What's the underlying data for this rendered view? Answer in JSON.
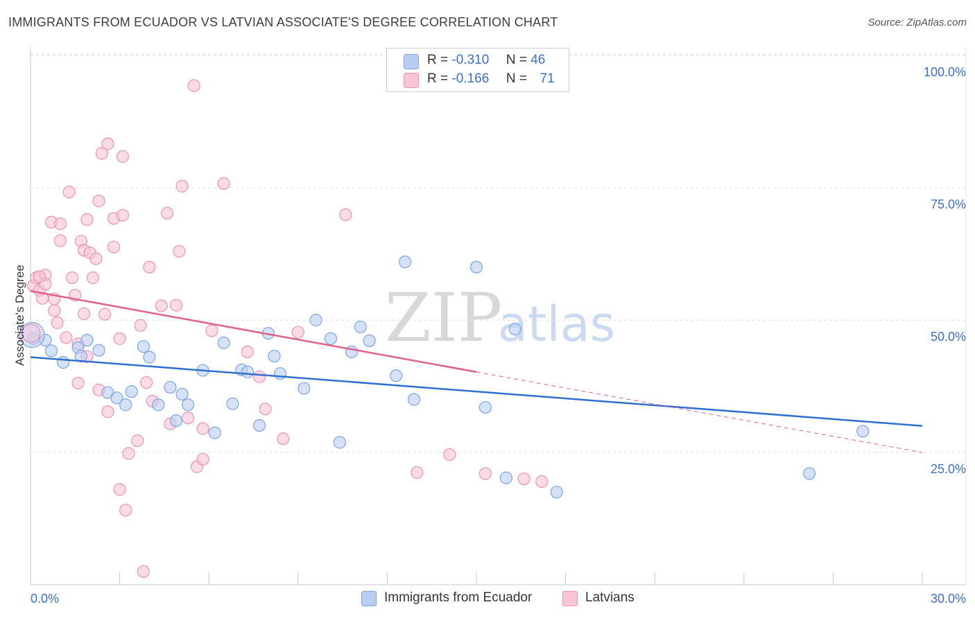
{
  "title": "IMMIGRANTS FROM ECUADOR VS LATVIAN ASSOCIATE'S DEGREE CORRELATION CHART",
  "source": "Source: ZipAtlas.com",
  "watermark": {
    "zip": "ZIP",
    "atlas": "atlas"
  },
  "legend": {
    "rows": [
      {
        "r_label": "R =",
        "r_value": "-0.310",
        "n_label": "N =",
        "n_value": "46"
      },
      {
        "r_label": "R =",
        "r_value": "-0.166",
        "n_label": "N =",
        "n_value": "71"
      }
    ]
  },
  "bottom_legend": [
    "Immigrants from Ecuador",
    "Latvians"
  ],
  "colors": {
    "blue_fill": "#b9cdf2",
    "blue_stroke": "#7ea3e3",
    "blue_line": "#2f6fcf",
    "pink_fill": "#f8c5d5",
    "pink_stroke": "#ec93b0",
    "pink_line": "#e0608a",
    "axis_label_blue": "#3a6fd0",
    "grid": "#dcdcdc"
  },
  "chart_data": {
    "type": "scatter",
    "title": "IMMIGRANTS FROM ECUADOR VS LATVIAN ASSOCIATE'S DEGREE CORRELATION CHART",
    "xlabel": "",
    "ylabel": "Associate's Degree",
    "xlim": [
      0,
      30
    ],
    "ylim": [
      0,
      102
    ],
    "x_tick_labels": [
      "0.0%",
      "30.0%"
    ],
    "y_ticks": [
      25,
      50,
      75,
      100
    ],
    "y_tick_labels": [
      "25.0%",
      "50.0%",
      "75.0%",
      "100.0%"
    ],
    "grid": true,
    "legend_position": "top-center",
    "series": [
      {
        "name": "Immigrants from Ecuador",
        "color": "#7ea3e3",
        "r": -0.31,
        "n": 46,
        "trend": {
          "x": [
            0,
            30
          ],
          "y": [
            43.0,
            30.0
          ]
        },
        "points": [
          [
            0.1,
            46.5
          ],
          [
            0.5,
            46.2
          ],
          [
            0.7,
            44.2
          ],
          [
            1.1,
            42.0
          ],
          [
            1.6,
            44.8
          ],
          [
            1.7,
            43.2
          ],
          [
            1.9,
            46.2
          ],
          [
            2.3,
            44.3
          ],
          [
            2.6,
            36.3
          ],
          [
            2.9,
            35.3
          ],
          [
            3.2,
            34.0
          ],
          [
            3.4,
            36.5
          ],
          [
            3.8,
            45.0
          ],
          [
            4.0,
            43.0
          ],
          [
            4.3,
            34.0
          ],
          [
            4.7,
            37.3
          ],
          [
            4.9,
            31.0
          ],
          [
            5.1,
            36.0
          ],
          [
            5.3,
            34.0
          ],
          [
            5.8,
            40.5
          ],
          [
            6.2,
            28.7
          ],
          [
            6.5,
            45.7
          ],
          [
            6.8,
            34.2
          ],
          [
            7.1,
            40.6
          ],
          [
            7.3,
            40.2
          ],
          [
            7.7,
            30.1
          ],
          [
            8.0,
            47.5
          ],
          [
            8.2,
            43.2
          ],
          [
            8.4,
            39.9
          ],
          [
            9.2,
            37.1
          ],
          [
            9.6,
            50.0
          ],
          [
            10.1,
            46.5
          ],
          [
            10.4,
            26.9
          ],
          [
            10.8,
            44.0
          ],
          [
            11.1,
            48.7
          ],
          [
            11.4,
            46.1
          ],
          [
            12.3,
            39.5
          ],
          [
            12.6,
            61.0
          ],
          [
            12.9,
            35.0
          ],
          [
            15.0,
            60.0
          ],
          [
            15.3,
            33.5
          ],
          [
            16.0,
            20.2
          ],
          [
            16.3,
            48.3
          ],
          [
            17.7,
            17.5
          ],
          [
            26.2,
            21.0
          ],
          [
            28.0,
            29.0
          ]
        ]
      },
      {
        "name": "Latvians",
        "color": "#ec93b0",
        "r": -0.166,
        "n": 71,
        "trend": {
          "x": [
            0,
            15
          ],
          "y": [
            55.5,
            40.2
          ]
        },
        "trend_dashed": {
          "x": [
            15,
            30
          ],
          "y": [
            40.2,
            25.0
          ]
        },
        "points": [
          [
            0.1,
            56.5
          ],
          [
            0.2,
            58.0
          ],
          [
            0.3,
            55.6
          ],
          [
            0.4,
            54.1
          ],
          [
            0.5,
            58.5
          ],
          [
            0.5,
            56.8
          ],
          [
            0.3,
            58.2
          ],
          [
            0.7,
            68.5
          ],
          [
            0.8,
            54.0
          ],
          [
            0.8,
            51.8
          ],
          [
            0.9,
            49.5
          ],
          [
            1.0,
            68.2
          ],
          [
            1.0,
            65.0
          ],
          [
            1.2,
            46.7
          ],
          [
            1.3,
            74.2
          ],
          [
            1.4,
            58.0
          ],
          [
            1.5,
            54.7
          ],
          [
            1.6,
            38.1
          ],
          [
            1.6,
            45.5
          ],
          [
            1.7,
            64.9
          ],
          [
            1.8,
            63.2
          ],
          [
            1.8,
            51.2
          ],
          [
            1.9,
            69.0
          ],
          [
            1.9,
            43.1
          ],
          [
            2.0,
            62.7
          ],
          [
            2.1,
            58.0
          ],
          [
            2.2,
            61.6
          ],
          [
            2.3,
            72.5
          ],
          [
            2.3,
            36.8
          ],
          [
            2.4,
            81.5
          ],
          [
            2.5,
            51.1
          ],
          [
            2.6,
            32.7
          ],
          [
            2.6,
            83.3
          ],
          [
            2.8,
            63.8
          ],
          [
            2.8,
            69.2
          ],
          [
            3.0,
            46.5
          ],
          [
            3.0,
            18.0
          ],
          [
            3.1,
            69.8
          ],
          [
            3.1,
            80.9
          ],
          [
            3.2,
            14.1
          ],
          [
            3.3,
            24.8
          ],
          [
            3.6,
            27.2
          ],
          [
            3.7,
            49.0
          ],
          [
            3.8,
            2.5
          ],
          [
            3.9,
            38.2
          ],
          [
            4.1,
            34.7
          ],
          [
            4.0,
            60.0
          ],
          [
            4.4,
            52.7
          ],
          [
            4.6,
            70.2
          ],
          [
            4.7,
            30.4
          ],
          [
            4.9,
            52.8
          ],
          [
            5.0,
            63.0
          ],
          [
            5.1,
            75.3
          ],
          [
            5.3,
            31.5
          ],
          [
            5.5,
            94.3
          ],
          [
            5.6,
            22.3
          ],
          [
            5.8,
            29.5
          ],
          [
            5.8,
            23.7
          ],
          [
            6.1,
            48.0
          ],
          [
            6.5,
            75.8
          ],
          [
            7.3,
            44.0
          ],
          [
            7.7,
            39.3
          ],
          [
            7.9,
            33.2
          ],
          [
            8.5,
            27.6
          ],
          [
            9.0,
            47.7
          ],
          [
            10.6,
            69.9
          ],
          [
            13.0,
            21.2
          ],
          [
            14.1,
            24.6
          ],
          [
            15.3,
            21.0
          ],
          [
            16.6,
            20.0
          ],
          [
            17.2,
            19.5
          ]
        ]
      }
    ]
  }
}
